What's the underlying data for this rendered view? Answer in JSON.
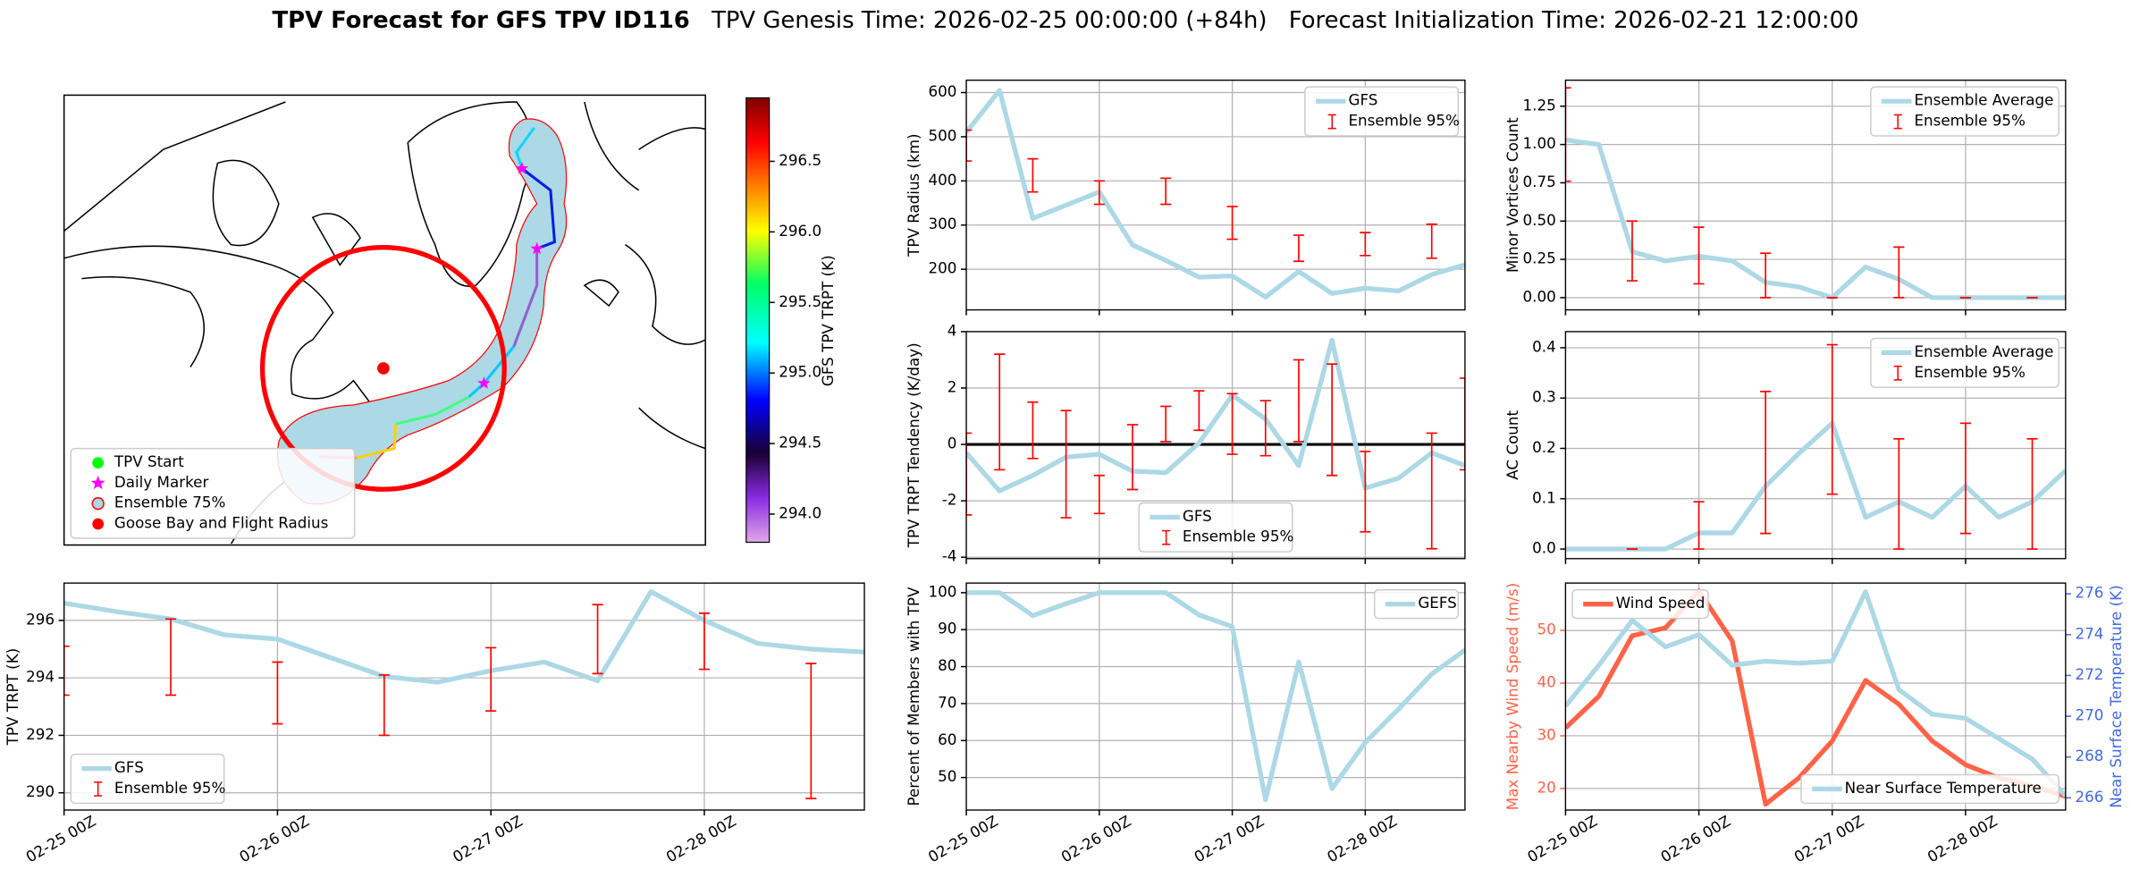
{
  "title": "TPV Forecast for GFS TPV ID116",
  "genesis": "TPV Genesis Time: 2026-02-25 00:00:00 (+84h)",
  "init": "Forecast Initialization Time: 2026-02-21 12:00:00",
  "chart_data": [
    {
      "type": "map",
      "colorbar": {
        "label": "GFS TPV TRPT (K)",
        "lim": [
          293.8,
          296.95
        ],
        "ticks": [
          {
            "value": 294,
            "label": "294.0"
          },
          {
            "value": 294.5,
            "label": "294.5"
          },
          {
            "value": 295,
            "label": "295.0"
          },
          {
            "value": 295.5,
            "label": "295.5"
          },
          {
            "value": 296,
            "label": "296.0"
          },
          {
            "value": 296.5,
            "label": "296.5"
          }
        ]
      },
      "legend_entries": [
        {
          "name": "TPV Start",
          "color": "#00ff00",
          "marker": "o"
        },
        {
          "name": "Daily Marker",
          "color": "#ff00ff",
          "marker": "*"
        },
        {
          "name": "Ensemble 75%",
          "color": "#add8e6",
          "edgecolor": "#ff0000",
          "marker": "o"
        },
        {
          "name": "Goose Bay and Flight Radius",
          "color": "#ff0000",
          "marker": "o"
        }
      ],
      "legend": "lower left"
    },
    {
      "type": "line",
      "ylabel": "TPV Radius (km)",
      "grid": true,
      "legend": "upper right",
      "x": [
        "02-25 00Z",
        "02-25 06Z",
        "02-25 12Z",
        "02-25 18Z",
        "02-26 00Z",
        "02-26 06Z",
        "02-26 12Z",
        "02-26 18Z",
        "02-27 00Z",
        "02-27 06Z",
        "02-27 12Z",
        "02-27 18Z",
        "02-28 00Z",
        "02-28 06Z",
        "02-28 12Z",
        "02-28 18Z"
      ],
      "xlim": [
        "02-25 00Z",
        "02-28 18Z"
      ],
      "xticks": [
        "02-25 00Z",
        "02-26 00Z",
        "02-27 00Z",
        "02-28 00Z"
      ],
      "ylim": [
        108,
        628
      ],
      "yticks": [
        200,
        300,
        400,
        500,
        600
      ],
      "series": [
        {
          "name": "GFS",
          "color": "#add8e6",
          "values": [
            510,
            605,
            315,
            345,
            375,
            255,
            220,
            182,
            185,
            137,
            195,
            145,
            157,
            151,
            188,
            210
          ]
        },
        {
          "name": "Ensemble 95%",
          "type": "errorbar",
          "color": "#ff0000",
          "x": [
            "02-25 00Z",
            "02-25 12Z",
            "02-26 00Z",
            "02-26 12Z",
            "02-27 00Z",
            "02-27 12Z",
            "02-28 00Z",
            "02-28 12Z"
          ],
          "low": [
            445,
            375,
            347,
            347,
            268,
            218,
            231,
            225
          ],
          "high": [
            515,
            450,
            400,
            406,
            342,
            277,
            283,
            302
          ]
        }
      ]
    },
    {
      "type": "line",
      "ylabel": "Minor Vortices Count",
      "grid": true,
      "legend": "upper right",
      "x": [
        "02-25 00Z",
        "02-25 06Z",
        "02-25 12Z",
        "02-25 18Z",
        "02-26 00Z",
        "02-26 06Z",
        "02-26 12Z",
        "02-26 18Z",
        "02-27 00Z",
        "02-27 06Z",
        "02-27 12Z",
        "02-27 18Z",
        "02-28 00Z",
        "02-28 06Z",
        "02-28 12Z",
        "02-28 18Z"
      ],
      "xlim": [
        "02-25 00Z",
        "02-28 18Z"
      ],
      "xticks": [
        "02-25 00Z",
        "02-26 00Z",
        "02-27 00Z",
        "02-28 00Z"
      ],
      "ylim": [
        -0.08,
        1.42
      ],
      "yticks": [
        {
          "value": 0,
          "label": "0.00"
        },
        {
          "value": 0.25,
          "label": "0.25"
        },
        {
          "value": 0.5,
          "label": "0.50"
        },
        {
          "value": 0.75,
          "label": "0.75"
        },
        {
          "value": 1,
          "label": "1.00"
        },
        {
          "value": 1.25,
          "label": "1.25"
        }
      ],
      "series": [
        {
          "name": "Ensemble Average",
          "color": "#add8e6",
          "values": [
            1.03,
            1.0,
            0.3,
            0.24,
            0.27,
            0.24,
            0.1,
            0.07,
            0,
            0.2,
            0.12,
            0,
            0,
            0,
            0,
            0
          ]
        },
        {
          "name": "Ensemble 95%",
          "type": "errorbar",
          "color": "#ff0000",
          "x": [
            "02-25 00Z",
            "02-25 12Z",
            "02-26 00Z",
            "02-26 12Z",
            "02-27 00Z",
            "02-27 12Z",
            "02-28 00Z",
            "02-28 12Z"
          ],
          "low": [
            0.76,
            0.11,
            0.09,
            0,
            0,
            0,
            0,
            0
          ],
          "high": [
            1.37,
            0.5,
            0.46,
            0.29,
            0,
            0.33,
            0,
            0
          ]
        }
      ]
    },
    {
      "type": "line",
      "ylabel": "TPV TRPT Tendency (K/day)",
      "grid": true,
      "legend": "lower center",
      "hline": 0,
      "x": [
        "02-25 00Z",
        "02-25 06Z",
        "02-25 12Z",
        "02-25 18Z",
        "02-26 00Z",
        "02-26 06Z",
        "02-26 12Z",
        "02-26 18Z",
        "02-27 00Z",
        "02-27 06Z",
        "02-27 12Z",
        "02-27 18Z",
        "02-28 00Z",
        "02-28 06Z",
        "02-28 12Z",
        "02-28 18Z"
      ],
      "xlim": [
        "02-25 00Z",
        "02-28 18Z"
      ],
      "xticks": [
        "02-25 00Z",
        "02-26 00Z",
        "02-27 00Z",
        "02-28 00Z"
      ],
      "ylim": [
        -4.05,
        4.0
      ],
      "yticks": [
        -4,
        -2,
        0,
        2,
        4
      ],
      "series": [
        {
          "name": "GFS",
          "color": "#add8e6",
          "values": [
            -0.3,
            -1.65,
            -1.1,
            -0.45,
            -0.35,
            -0.95,
            -1.0,
            0.05,
            1.75,
            0.9,
            -0.75,
            3.7,
            -1.55,
            -1.2,
            -0.3,
            -0.75
          ]
        },
        {
          "name": "Ensemble 95%",
          "type": "errorbar",
          "color": "#ff0000",
          "x": [
            "02-25 00Z",
            "02-25 06Z",
            "02-25 12Z",
            "02-25 18Z",
            "02-26 00Z",
            "02-26 06Z",
            "02-26 12Z",
            "02-26 18Z",
            "02-27 00Z",
            "02-27 06Z",
            "02-27 12Z",
            "02-27 18Z",
            "02-28 00Z",
            "02-28 12Z",
            "02-28 18Z"
          ],
          "low": [
            -2.5,
            -0.9,
            -0.5,
            -2.6,
            -2.45,
            -1.6,
            0.1,
            0.5,
            -0.35,
            -0.4,
            0.1,
            -1.1,
            -3.1,
            -3.7,
            -0.9
          ],
          "high": [
            0.4,
            3.2,
            1.5,
            1.2,
            -1.1,
            0.7,
            1.35,
            1.9,
            1.8,
            1.55,
            3.0,
            2.85,
            -0.25,
            0.4,
            2.35
          ]
        }
      ]
    },
    {
      "type": "line",
      "ylabel": "AC Count",
      "grid": true,
      "legend": "upper right",
      "x": [
        "02-25 00Z",
        "02-25 06Z",
        "02-25 12Z",
        "02-25 18Z",
        "02-26 00Z",
        "02-26 06Z",
        "02-26 12Z",
        "02-26 18Z",
        "02-27 00Z",
        "02-27 06Z",
        "02-27 12Z",
        "02-27 18Z",
        "02-28 00Z",
        "02-28 06Z",
        "02-28 12Z",
        "02-28 18Z"
      ],
      "xlim": [
        "02-25 00Z",
        "02-28 18Z"
      ],
      "xticks": [
        "02-25 00Z",
        "02-26 00Z",
        "02-27 00Z",
        "02-28 00Z"
      ],
      "ylim": [
        -0.019,
        0.432
      ],
      "yticks": [
        {
          "value": 0,
          "label": "0.0"
        },
        0.1,
        0.2,
        0.3,
        0.4
      ],
      "series": [
        {
          "name": "Ensemble Average",
          "color": "#add8e6",
          "values": [
            0,
            0,
            0,
            0,
            0.032,
            0.032,
            0.125,
            0.19,
            0.25,
            0.063,
            0.094,
            0.063,
            0.125,
            0.063,
            0.094,
            0.156
          ]
        },
        {
          "name": "Ensemble 95%",
          "type": "errorbar",
          "color": "#ff0000",
          "x": [
            "02-25 12Z",
            "02-26 00Z",
            "02-26 12Z",
            "02-27 00Z",
            "02-27 12Z",
            "02-28 00Z",
            "02-28 12Z"
          ],
          "low": [
            0,
            0,
            0.031,
            0.109,
            0,
            0.031,
            0
          ],
          "high": [
            0,
            0.094,
            0.313,
            0.406,
            0.219,
            0.25,
            0.219
          ]
        }
      ]
    },
    {
      "type": "line",
      "ylabel": "TPV TRPT (K)",
      "grid": true,
      "legend": "lower left",
      "x": [
        "02-25 00Z",
        "02-25 06Z",
        "02-25 12Z",
        "02-25 18Z",
        "02-26 00Z",
        "02-26 06Z",
        "02-26 12Z",
        "02-26 18Z",
        "02-27 00Z",
        "02-27 06Z",
        "02-27 12Z",
        "02-27 18Z",
        "02-28 00Z",
        "02-28 06Z",
        "02-28 12Z",
        "02-28 18Z"
      ],
      "xlim": [
        "02-25 00Z",
        "02-28 18Z"
      ],
      "xticks": [
        "02-25 00Z",
        "02-26 00Z",
        "02-27 00Z",
        "02-28 00Z"
      ],
      "ylim": [
        289.4,
        297.3
      ],
      "yticks": [
        290,
        292,
        294,
        296
      ],
      "series": [
        {
          "name": "GFS",
          "color": "#add8e6",
          "values": [
            296.6,
            296.3,
            296.05,
            295.5,
            295.35,
            294.7,
            294.05,
            293.85,
            294.25,
            294.55,
            293.9,
            297.0,
            296.0,
            295.2,
            295.0,
            294.9
          ]
        },
        {
          "name": "Ensemble 95%",
          "type": "errorbar",
          "color": "#ff0000",
          "x": [
            "02-25 00Z",
            "02-25 12Z",
            "02-26 00Z",
            "02-26 12Z",
            "02-27 00Z",
            "02-27 12Z",
            "02-28 00Z",
            "02-28 12Z"
          ],
          "low": [
            293.4,
            293.4,
            292.4,
            292.0,
            292.85,
            294.15,
            294.3,
            289.8
          ],
          "high": [
            295.1,
            296.05,
            294.55,
            294.1,
            295.05,
            296.55,
            296.25,
            294.5
          ]
        }
      ]
    },
    {
      "type": "line",
      "ylabel": "Percent of Members with TPV",
      "grid": true,
      "legend": "upper right",
      "x": [
        "02-25 00Z",
        "02-25 06Z",
        "02-25 12Z",
        "02-25 18Z",
        "02-26 00Z",
        "02-26 06Z",
        "02-26 12Z",
        "02-26 18Z",
        "02-27 00Z",
        "02-27 06Z",
        "02-27 12Z",
        "02-27 18Z",
        "02-28 00Z",
        "02-28 06Z",
        "02-28 12Z",
        "02-28 18Z"
      ],
      "xlim": [
        "02-25 00Z",
        "02-28 18Z"
      ],
      "xticks": [
        "02-25 00Z",
        "02-26 00Z",
        "02-27 00Z",
        "02-28 00Z"
      ],
      "ylim": [
        41.2,
        102.6
      ],
      "yticks": [
        50,
        60,
        70,
        80,
        90,
        100
      ],
      "series": [
        {
          "name": "GEFS",
          "color": "#add8e6",
          "values": [
            100,
            100,
            93.8,
            97,
            100,
            100,
            100,
            94,
            90.8,
            44,
            81.3,
            47,
            59.5,
            68.5,
            78,
            84.5
          ]
        }
      ]
    },
    {
      "type": "line",
      "ylabel": "Max Nearby Wind Speed (m/s)",
      "y2label": "Near Surface Temperature (K)",
      "grid": true,
      "ycolor": "#ff6347",
      "y2color": "#4169e1",
      "x": [
        "02-25 00Z",
        "02-25 06Z",
        "02-25 12Z",
        "02-25 18Z",
        "02-26 00Z",
        "02-26 06Z",
        "02-26 12Z",
        "02-26 18Z",
        "02-27 00Z",
        "02-27 06Z",
        "02-27 12Z",
        "02-27 18Z",
        "02-28 00Z",
        "02-28 06Z",
        "02-28 12Z",
        "02-28 18Z"
      ],
      "xlim": [
        "02-25 00Z",
        "02-28 18Z"
      ],
      "xticks": [
        "02-25 00Z",
        "02-26 00Z",
        "02-27 00Z",
        "02-28 00Z"
      ],
      "ylim": [
        15.9,
        59.0
      ],
      "yticks": [
        20,
        30,
        40,
        50
      ],
      "y2lim": [
        265.4,
        276.53
      ],
      "y2ticks": [
        266,
        268,
        270,
        272,
        274,
        276
      ],
      "series": [
        {
          "name": "Wind Speed",
          "color": "#ff6347",
          "legend": "upper left",
          "values": [
            31.5,
            37.5,
            49.0,
            50.5,
            57.5,
            48,
            17,
            22,
            29,
            40.5,
            36,
            29,
            24.5,
            22,
            20.5,
            18.5
          ]
        },
        {
          "name": "Near Surface Temperature",
          "color": "#add8e6",
          "axis": "y2",
          "legend": "lower right",
          "values": [
            270.5,
            272.5,
            274.7,
            273.4,
            274.0,
            272.5,
            272.7,
            272.6,
            272.7,
            276.1,
            271.3,
            270.1,
            269.9,
            268.9,
            267.9,
            266.1
          ]
        }
      ]
    }
  ]
}
